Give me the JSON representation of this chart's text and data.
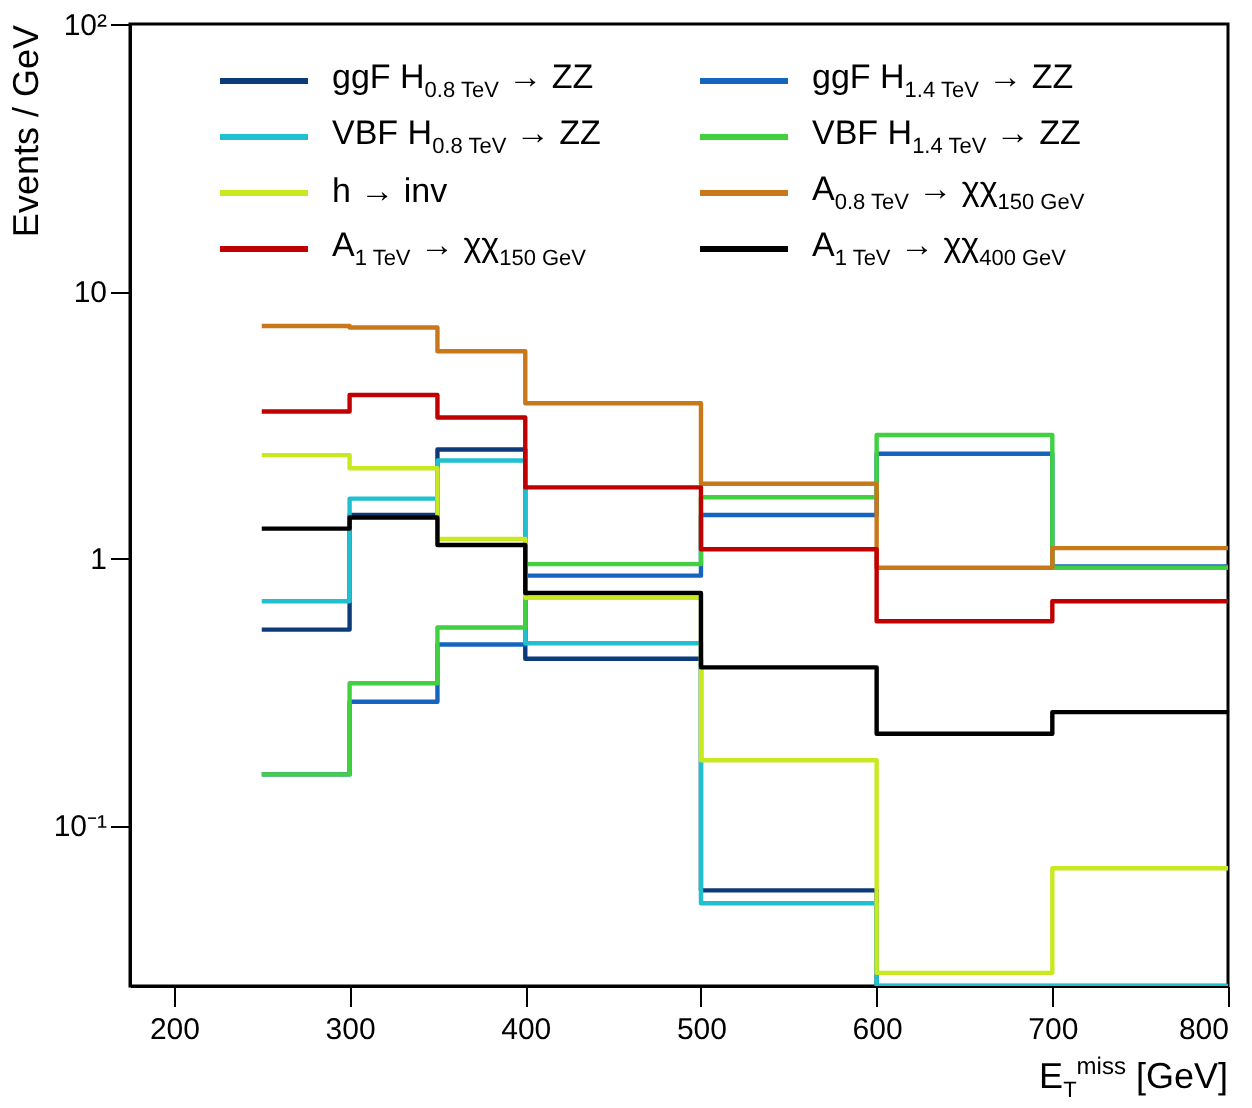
{
  "chart_data": {
    "type": "histogram",
    "xlabel": "E$_{T}$$^{miss}$ [GeV]",
    "ylabel": "Events / GeV",
    "bins": [
      250,
      300,
      350,
      400,
      500,
      600,
      700,
      800
    ],
    "series": [
      {
        "name": "ggF H$_{0.8 TeV}$ → ZZ",
        "color": "#0d3b7a",
        "values": [
          0.54,
          1.45,
          2.55,
          0.42,
          0.057,
          null,
          null
        ]
      },
      {
        "name": "ggF H$_{1.4 TeV}$ → ZZ",
        "color": "#1565c0",
        "values": [
          0.155,
          0.29,
          0.475,
          0.86,
          1.45,
          2.46,
          0.93
        ]
      },
      {
        "name": "VBF H$_{0.8 TeV}$ → ZZ",
        "color": "#20c0d0",
        "values": [
          0.69,
          1.67,
          2.32,
          0.48,
          0.051,
          null,
          null
        ]
      },
      {
        "name": "VBF H$_{1.4 TeV}$ → ZZ",
        "color": "#40d040",
        "values": [
          0.155,
          0.34,
          0.55,
          0.95,
          1.69,
          2.89,
          0.92
        ]
      },
      {
        "name": "h → inv",
        "color": "#c8e820",
        "values": [
          2.43,
          2.17,
          1.18,
          0.71,
          0.175,
          0.028,
          0.069
        ]
      },
      {
        "name": "A$_{0.8 TeV}$ → χχ$_{150 GeV}$",
        "color": "#c87818",
        "values": [
          7.4,
          7.3,
          5.95,
          3.8,
          1.9,
          0.92,
          1.09
        ]
      },
      {
        "name": "A$_{1 TeV}$ → χχ$_{150 GeV}$",
        "color": "#c00000",
        "values": [
          3.54,
          4.08,
          3.36,
          1.84,
          1.08,
          0.58,
          0.69
        ]
      },
      {
        "name": "A$_{1 TeV}$ → χχ$_{400 GeV}$",
        "color": "#000000",
        "values": [
          1.29,
          1.42,
          1.12,
          0.74,
          0.39,
          0.22,
          0.265
        ]
      }
    ],
    "xlim": [
      175,
      800
    ],
    "xticks": [
      200,
      300,
      400,
      500,
      600,
      700,
      800
    ],
    "ylim": [
      0.025,
      100
    ],
    "yticks": [
      {
        "value": 0.1,
        "label": "10⁻¹"
      },
      1,
      10,
      {
        "value": 100,
        "label": "10²"
      }
    ],
    "log": true,
    "grid": false,
    "legend": "top"
  }
}
